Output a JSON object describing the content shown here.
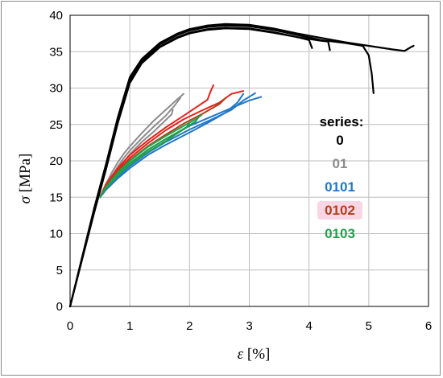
{
  "chart_data": {
    "type": "line",
    "title": "",
    "xlabel": {
      "symbol": "ε",
      "unit": "[%]"
    },
    "ylabel": {
      "symbol": "σ",
      "unit": "[MPa]"
    },
    "xlim": [
      0,
      6
    ],
    "ylim": [
      0,
      40
    ],
    "xticks": [
      "0",
      "1",
      "2",
      "3",
      "4",
      "5",
      "6"
    ],
    "yticks": [
      "0",
      "5",
      "10",
      "15",
      "20",
      "25",
      "30",
      "35",
      "40"
    ],
    "grid": true,
    "legend": {
      "title": "series:",
      "placement": "right",
      "entries": [
        {
          "label": "0",
          "color": "#000000",
          "highlight": false
        },
        {
          "label": "01",
          "color": "#8c8c8c",
          "highlight": false
        },
        {
          "label": "0101",
          "color": "#1f78c8",
          "highlight": false
        },
        {
          "label": "0102",
          "color": "#b0401a",
          "highlight": true
        },
        {
          "label": "0103",
          "color": "#22a04a",
          "highlight": false
        }
      ]
    },
    "series": [
      {
        "group": "0",
        "color": "#000000",
        "points": [
          [
            0,
            0
          ],
          [
            0.2,
            6.5
          ],
          [
            0.4,
            13
          ],
          [
            0.6,
            19
          ],
          [
            0.8,
            25.5
          ],
          [
            1.0,
            31
          ],
          [
            1.2,
            33.6
          ],
          [
            1.5,
            35.7
          ],
          [
            1.8,
            37
          ],
          [
            2.0,
            37.6
          ],
          [
            2.3,
            38.1
          ],
          [
            2.6,
            38.3
          ],
          [
            3.0,
            38.2
          ],
          [
            3.4,
            37.7
          ],
          [
            3.8,
            37.0
          ],
          [
            4.0,
            36.6
          ],
          [
            4.05,
            35.5
          ]
        ]
      },
      {
        "group": "0",
        "color": "#000000",
        "points": [
          [
            0,
            0
          ],
          [
            0.2,
            6.4
          ],
          [
            0.4,
            12.8
          ],
          [
            0.6,
            18.8
          ],
          [
            0.8,
            25.2
          ],
          [
            1.0,
            30.7
          ],
          [
            1.2,
            33.4
          ],
          [
            1.5,
            35.6
          ],
          [
            1.8,
            36.9
          ],
          [
            2.0,
            37.5
          ],
          [
            2.3,
            38.0
          ],
          [
            2.6,
            38.2
          ],
          [
            3.0,
            38.1
          ],
          [
            3.4,
            37.6
          ],
          [
            3.8,
            37.0
          ],
          [
            4.2,
            36.5
          ],
          [
            4.32,
            36.4
          ],
          [
            4.35,
            35.2
          ]
        ]
      },
      {
        "group": "0",
        "color": "#000000",
        "points": [
          [
            0,
            0
          ],
          [
            0.2,
            6.6
          ],
          [
            0.4,
            13.2
          ],
          [
            0.6,
            19.2
          ],
          [
            0.8,
            25.7
          ],
          [
            1.0,
            31.2
          ],
          [
            1.2,
            33.8
          ],
          [
            1.5,
            36.0
          ],
          [
            1.8,
            37.3
          ],
          [
            2.0,
            37.9
          ],
          [
            2.3,
            38.4
          ],
          [
            2.6,
            38.6
          ],
          [
            3.0,
            38.5
          ],
          [
            3.4,
            38.0
          ],
          [
            3.8,
            37.3
          ],
          [
            4.2,
            36.6
          ],
          [
            4.6,
            36.2
          ],
          [
            4.9,
            35.8
          ],
          [
            5.0,
            34.5
          ],
          [
            5.05,
            32
          ],
          [
            5.08,
            29.3
          ]
        ]
      },
      {
        "group": "0",
        "color": "#000000",
        "points": [
          [
            0,
            0
          ],
          [
            0.2,
            6.7
          ],
          [
            0.4,
            13.4
          ],
          [
            0.6,
            19.5
          ],
          [
            0.8,
            26.0
          ],
          [
            1.0,
            31.5
          ],
          [
            1.2,
            34.0
          ],
          [
            1.5,
            36.2
          ],
          [
            1.8,
            37.5
          ],
          [
            2.0,
            38.1
          ],
          [
            2.3,
            38.6
          ],
          [
            2.6,
            38.8
          ],
          [
            3.0,
            38.7
          ],
          [
            3.4,
            38.2
          ],
          [
            3.8,
            37.5
          ],
          [
            4.2,
            36.9
          ],
          [
            4.6,
            36.3
          ],
          [
            5.0,
            35.8
          ],
          [
            5.4,
            35.3
          ],
          [
            5.6,
            35.1
          ],
          [
            5.7,
            35.6
          ],
          [
            5.75,
            35.8
          ]
        ]
      },
      {
        "group": "01",
        "color": "#8c8c8c",
        "points": [
          [
            0.5,
            15
          ],
          [
            0.6,
            16.8
          ],
          [
            0.7,
            18.4
          ],
          [
            0.8,
            19.8
          ],
          [
            0.9,
            21.0
          ],
          [
            1.0,
            22.0
          ],
          [
            1.2,
            23.8
          ],
          [
            1.4,
            25.5
          ],
          [
            1.6,
            27.0
          ],
          [
            1.8,
            28.5
          ],
          [
            1.9,
            29.2
          ]
        ]
      },
      {
        "group": "01",
        "color": "#8c8c8c",
        "points": [
          [
            0.5,
            15
          ],
          [
            0.6,
            16.5
          ],
          [
            0.7,
            17.9
          ],
          [
            0.8,
            19.2
          ],
          [
            0.9,
            20.4
          ],
          [
            1.0,
            21.4
          ],
          [
            1.2,
            23.1
          ],
          [
            1.4,
            24.7
          ],
          [
            1.6,
            26.2
          ],
          [
            1.75,
            27.6
          ],
          [
            1.85,
            28.7
          ]
        ]
      },
      {
        "group": "01",
        "color": "#8c8c8c",
        "points": [
          [
            0.5,
            15
          ],
          [
            0.6,
            16.3
          ],
          [
            0.7,
            17.6
          ],
          [
            0.8,
            18.8
          ],
          [
            0.9,
            19.9
          ],
          [
            1.0,
            20.9
          ],
          [
            1.2,
            22.6
          ],
          [
            1.4,
            24.0
          ],
          [
            1.55,
            25.2
          ],
          [
            1.7,
            26.4
          ],
          [
            1.72,
            27.0
          ]
        ]
      },
      {
        "group": "0101",
        "color": "#1f78c8",
        "points": [
          [
            0.5,
            15
          ],
          [
            0.6,
            16.2
          ],
          [
            0.8,
            18.0
          ],
          [
            1.0,
            19.6
          ],
          [
            1.3,
            21.5
          ],
          [
            1.6,
            23.0
          ],
          [
            2.0,
            24.8
          ],
          [
            2.4,
            26.2
          ],
          [
            2.8,
            27.6
          ],
          [
            3.0,
            28.3
          ],
          [
            3.2,
            28.8
          ]
        ]
      },
      {
        "group": "0101",
        "color": "#1f78c8",
        "points": [
          [
            0.5,
            15
          ],
          [
            0.6,
            16.1
          ],
          [
            0.8,
            17.8
          ],
          [
            1.0,
            19.3
          ],
          [
            1.3,
            21.1
          ],
          [
            1.6,
            22.6
          ],
          [
            2.0,
            24.3
          ],
          [
            2.4,
            25.8
          ],
          [
            2.7,
            27.0
          ],
          [
            2.9,
            28.3
          ],
          [
            3.1,
            29.3
          ]
        ]
      },
      {
        "group": "0101",
        "color": "#1f78c8",
        "points": [
          [
            0.5,
            15
          ],
          [
            0.6,
            16.0
          ],
          [
            0.8,
            17.6
          ],
          [
            1.0,
            19.0
          ],
          [
            1.3,
            20.8
          ],
          [
            1.6,
            22.2
          ],
          [
            2.0,
            23.9
          ],
          [
            2.3,
            25.2
          ],
          [
            2.6,
            26.6
          ],
          [
            2.8,
            28.0
          ],
          [
            2.9,
            29.2
          ]
        ]
      },
      {
        "group": "0102",
        "color": "#e8201a",
        "points": [
          [
            0.5,
            15
          ],
          [
            0.6,
            16.8
          ],
          [
            0.8,
            19.0
          ],
          [
            1.0,
            20.8
          ],
          [
            1.3,
            22.8
          ],
          [
            1.6,
            24.6
          ],
          [
            1.9,
            26.2
          ],
          [
            2.1,
            27.3
          ],
          [
            2.3,
            28.4
          ],
          [
            2.35,
            29.5
          ],
          [
            2.4,
            30.4
          ]
        ]
      },
      {
        "group": "0102",
        "color": "#e8201a",
        "points": [
          [
            0.5,
            15
          ],
          [
            0.6,
            16.6
          ],
          [
            0.8,
            18.7
          ],
          [
            1.0,
            20.4
          ],
          [
            1.3,
            22.4
          ],
          [
            1.6,
            24.2
          ],
          [
            1.9,
            25.7
          ],
          [
            2.2,
            26.9
          ],
          [
            2.5,
            28.0
          ],
          [
            2.7,
            29.2
          ],
          [
            2.9,
            29.6
          ]
        ]
      },
      {
        "group": "0102",
        "color": "#b0401a",
        "points": [
          [
            0.5,
            15
          ],
          [
            0.6,
            16.5
          ],
          [
            0.8,
            18.5
          ],
          [
            1.0,
            20.1
          ],
          [
            1.3,
            22.0
          ],
          [
            1.6,
            23.6
          ],
          [
            1.9,
            25.1
          ],
          [
            2.2,
            26.4
          ],
          [
            2.5,
            27.8
          ],
          [
            2.6,
            28.6
          ]
        ]
      },
      {
        "group": "0103",
        "color": "#22a04a",
        "points": [
          [
            0.5,
            15
          ],
          [
            0.6,
            16.4
          ],
          [
            0.8,
            18.4
          ],
          [
            1.0,
            20.0
          ],
          [
            1.3,
            21.9
          ],
          [
            1.6,
            23.4
          ],
          [
            1.9,
            24.8
          ],
          [
            2.1,
            25.7
          ],
          [
            2.2,
            26.3
          ]
        ]
      },
      {
        "group": "0103",
        "color": "#22a04a",
        "points": [
          [
            0.5,
            15
          ],
          [
            0.6,
            16.3
          ],
          [
            0.8,
            18.2
          ],
          [
            1.0,
            19.7
          ],
          [
            1.3,
            21.5
          ],
          [
            1.6,
            23.0
          ],
          [
            1.9,
            24.4
          ],
          [
            2.1,
            25.4
          ],
          [
            2.15,
            26.0
          ]
        ]
      },
      {
        "group": "0103",
        "color": "#22a04a",
        "points": [
          [
            0.5,
            15
          ],
          [
            0.6,
            16.2
          ],
          [
            0.8,
            18.0
          ],
          [
            1.0,
            19.5
          ],
          [
            1.3,
            21.2
          ],
          [
            1.6,
            22.7
          ],
          [
            1.8,
            23.8
          ],
          [
            1.95,
            24.6
          ],
          [
            2.0,
            25.2
          ]
        ]
      }
    ]
  }
}
